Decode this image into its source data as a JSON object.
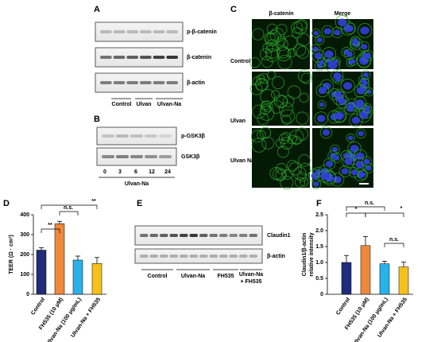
{
  "panel_a": {
    "letter": "A",
    "rows": [
      "p-β-catenin",
      "β-catenin",
      "β-actin"
    ],
    "groups": [
      "Control",
      "Ulvan",
      "Ulvan-Na"
    ]
  },
  "panel_b": {
    "letter": "B",
    "rows": [
      "p-GSK3β",
      "GSK3β"
    ],
    "times": [
      "0",
      "3",
      "6",
      "12",
      "24"
    ],
    "group": "Ulvan-Na"
  },
  "panel_c": {
    "letter": "C",
    "columns": [
      "β-catenin",
      "Merge"
    ],
    "rows": [
      "Control",
      "Ulvan",
      "Ulvan Na"
    ]
  },
  "panel_e": {
    "letter": "E",
    "rows": [
      "Claudin1",
      "β-actin"
    ],
    "groups": [
      "Control",
      "Ulvan-Na",
      "FH535"
    ],
    "last_group": [
      "Ulvan-Na",
      "+ FH535"
    ]
  },
  "chart_data": [
    {
      "type": "bar",
      "panel": "D",
      "ylabel": "TEER (Ω · cm²)",
      "categories": [
        "Control",
        "FH535 (10 μM)",
        "Ulvan-Na (100 μg/mL)",
        "Ulvan-Na + FH535"
      ],
      "values": [
        222,
        355,
        172,
        155
      ],
      "errors": [
        12,
        12,
        20,
        30
      ],
      "colors": [
        "#1f2d7a",
        "#f0883a",
        "#2bb0e8",
        "#f5c21b"
      ],
      "ylim": [
        0,
        400
      ],
      "yticks": [
        0,
        100,
        200,
        300,
        400
      ],
      "annotations": [
        "**",
        "n.s.",
        "**"
      ]
    },
    {
      "type": "bar",
      "panel": "F",
      "ylabel": [
        "Claudin1/β-actin",
        "relative intensity"
      ],
      "categories": [
        "Control",
        "FH535 (10 μM)",
        "Ulvan-Na (100 μg/mL)",
        "Ulvan-Na + FH535"
      ],
      "values": [
        1.0,
        1.53,
        0.96,
        0.86
      ],
      "errors": [
        0.22,
        0.28,
        0.08,
        0.15
      ],
      "colors": [
        "#1f2d7a",
        "#f0883a",
        "#2bb0e8",
        "#f5c21b"
      ],
      "ylim": [
        0,
        2.5
      ],
      "yticks": [
        0,
        0.5,
        {
          "value": 1,
          "label": "1.0"
        },
        1.5,
        {
          "value": 2,
          "label": "2.0"
        },
        2.5
      ],
      "annotations": [
        "*",
        "n.s.",
        "*",
        "n.s."
      ]
    }
  ]
}
